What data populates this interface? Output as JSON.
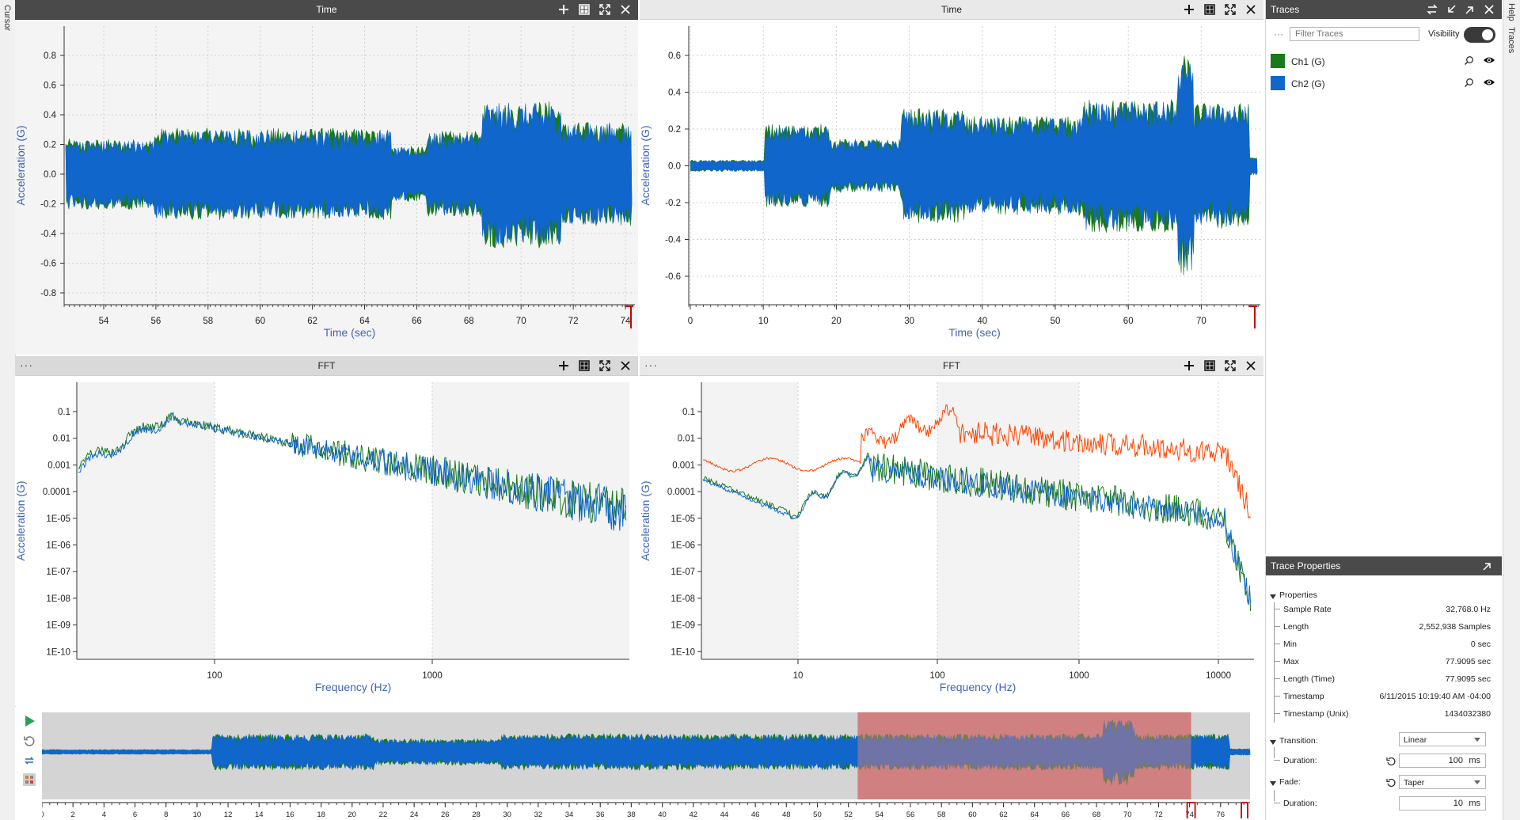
{
  "side": {
    "left_label": "Cursor",
    "right_labels": [
      "Help",
      "Traces"
    ]
  },
  "colors": {
    "ch1": "#1a7a1a",
    "ch2": "#1166cc",
    "ch_orange": "#ff4500",
    "selection": "#d08080"
  },
  "panels": {
    "time1": {
      "title": "Time",
      "ylabel": "Acceleration (G)",
      "xlabel": "Time (sec)",
      "yticks": [
        "0.8",
        "0.6",
        "0.4",
        "0.2",
        "0.0",
        "-0.2",
        "-0.4",
        "-0.6",
        "-0.8"
      ],
      "xticks": [
        "54",
        "56",
        "58",
        "60",
        "62",
        "64",
        "66",
        "68",
        "70",
        "72",
        "74"
      ]
    },
    "time2": {
      "title": "Time",
      "ylabel": "Acceleration (G)",
      "xlabel": "Time (sec)",
      "yticks": [
        "0.6",
        "0.4",
        "0.2",
        "0.0",
        "-0.2",
        "-0.4",
        "-0.6"
      ],
      "xticks": [
        "0",
        "10",
        "20",
        "30",
        "40",
        "50",
        "60",
        "70"
      ]
    },
    "fft1": {
      "title": "FFT",
      "ylabel": "Acceleration (G)",
      "xlabel": "Frequency (Hz)",
      "yticks": [
        "0.1",
        "0.01",
        "0.001",
        "0.0001",
        "1E-05",
        "1E-06",
        "1E-07",
        "1E-08",
        "1E-09",
        "1E-10"
      ],
      "xticks": [
        "100",
        "1000"
      ]
    },
    "fft2": {
      "title": "FFT",
      "ylabel": "Acceleration (G)",
      "xlabel": "Frequency (Hz)",
      "yticks": [
        "0.1",
        "0.01",
        "0.001",
        "0.0001",
        "1E-05",
        "1E-06",
        "1E-07",
        "1E-08",
        "1E-09",
        "1E-10"
      ],
      "xticks": [
        "10",
        "100",
        "1000",
        "10000"
      ]
    }
  },
  "traces": {
    "title": "Traces",
    "filter_placeholder": "Filter Traces",
    "visibility_label": "Visibility",
    "items": [
      {
        "name": "Ch1 (G)",
        "color": "#1a7a1a"
      },
      {
        "name": "Ch2 (G)",
        "color": "#1166cc"
      }
    ]
  },
  "trace_properties": {
    "title": "Trace Properties",
    "section": "Properties",
    "rows": [
      {
        "label": "Sample Rate",
        "value": "32,768.0 Hz"
      },
      {
        "label": "Length",
        "value": "2,552,938 Samples"
      },
      {
        "label": "Min",
        "value": "0 sec"
      },
      {
        "label": "Max",
        "value": "77.9095 sec"
      },
      {
        "label": "Length (Time)",
        "value": "77.9095 sec"
      },
      {
        "label": "Timestamp",
        "value": "6/11/2015 10:19:40 AM -04:00"
      },
      {
        "label": "Timestamp (Unix)",
        "value": "1434032380"
      }
    ],
    "transition_label": "Transition:",
    "transition_value": "Linear",
    "transition_duration_label": "Duration:",
    "transition_duration_value": "100",
    "transition_duration_unit": "ms",
    "fade_label": "Fade:",
    "fade_value": "Taper",
    "fade_duration_label": "Duration:",
    "fade_duration_value": "10",
    "fade_duration_unit": "ms"
  },
  "overview": {
    "xticks": [
      "0",
      "2",
      "4",
      "6",
      "8",
      "10",
      "12",
      "14",
      "16",
      "18",
      "20",
      "22",
      "24",
      "26",
      "28",
      "30",
      "32",
      "34",
      "36",
      "38",
      "40",
      "42",
      "44",
      "46",
      "48",
      "50",
      "52",
      "54",
      "56",
      "58",
      "60",
      "62",
      "64",
      "66",
      "68",
      "70",
      "72",
      "74",
      "76"
    ],
    "selection_start": 52.6,
    "selection_end": 74.1,
    "axis_max": 77.9
  }
}
